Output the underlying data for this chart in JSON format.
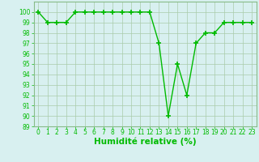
{
  "x": [
    0,
    1,
    2,
    3,
    4,
    5,
    6,
    7,
    8,
    9,
    10,
    11,
    12,
    13,
    14,
    15,
    16,
    17,
    18,
    19,
    20,
    21,
    22,
    23
  ],
  "y": [
    100,
    99,
    99,
    99,
    100,
    100,
    100,
    100,
    100,
    100,
    100,
    100,
    100,
    97,
    90,
    95,
    92,
    97,
    98,
    98,
    99,
    99,
    99,
    99
  ],
  "line_color": "#00bb00",
  "marker": "+",
  "marker_size": 4,
  "marker_linewidth": 1.2,
  "bg_color": "#d8f0f0",
  "grid_color_major": "#aaccaa",
  "grid_color_minor": "#c8e8c8",
  "xlabel": "Humidité relative (%)",
  "xlabel_color": "#00bb00",
  "xlabel_fontsize": 7.5,
  "ylim": [
    89,
    101
  ],
  "xlim": [
    -0.5,
    23.5
  ],
  "yticks": [
    89,
    90,
    91,
    92,
    93,
    94,
    95,
    96,
    97,
    98,
    99,
    100
  ],
  "xticks": [
    0,
    1,
    2,
    3,
    4,
    5,
    6,
    7,
    8,
    9,
    10,
    11,
    12,
    13,
    14,
    15,
    16,
    17,
    18,
    19,
    20,
    21,
    22,
    23
  ],
  "tick_color": "#00bb00",
  "tick_fontsize": 5.5,
  "line_width": 1.0,
  "spine_color": "#88bb88"
}
